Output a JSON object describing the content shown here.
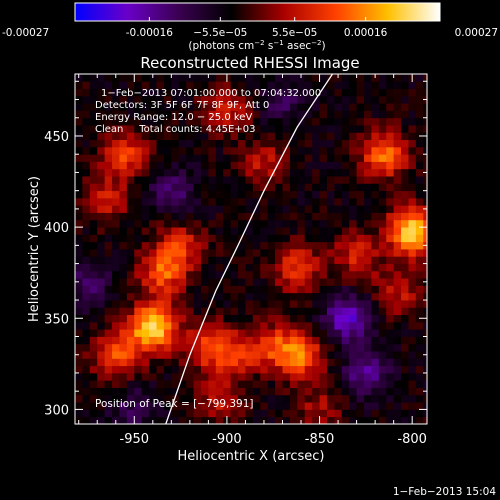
{
  "chart_data": {
    "type": "heatmap",
    "title": "Reconstructed RHESSI Image",
    "xlabel": "Heliocentric X (arcsec)",
    "ylabel": "Heliocentric Y (arcsec)",
    "x_ticks": [
      "-950",
      "-900",
      "-850",
      "-800"
    ],
    "x_tick_values": [
      -950,
      -900,
      -850,
      -800
    ],
    "y_ticks": [
      "300",
      "350",
      "400",
      "450"
    ],
    "y_tick_values": [
      300,
      350,
      400,
      450
    ],
    "xlim": [
      -982,
      -792
    ],
    "ylim": [
      292,
      484
    ],
    "colorbar": {
      "ticks": [
        "-0.00027",
        "-0.00016",
        "−5.5e−05",
        "5.5e−05",
        "0.00016",
        "0.00027"
      ],
      "tick_values": [
        -0.00027,
        -0.00016,
        -5.5e-05,
        5.5e-05,
        0.00016,
        0.00027
      ],
      "range": [
        -0.00027,
        0.00027
      ],
      "unit_label_parts": [
        "(photons cm",
        "−2",
        " s",
        "−1",
        " asec",
        "−2",
        ")"
      ],
      "colors": [
        "#0000ff",
        "#6a00c8",
        "#3a0050",
        "#000000",
        "#a80000",
        "#ff4000",
        "#ffc000",
        "#ffffff"
      ]
    },
    "info_lines": [
      "1−Feb−2013 07:01:00.000 to 07:04:32.000",
      "Detectors: 3F 5F 6F 7F 8F 9F, Att 0",
      "Energy Range: 12.0 − 25.0 keV",
      "Clean     Total counts: 4.45E+03"
    ],
    "peak_label": "Position of Peak = [−799,391]",
    "peak_position": [
      -799,
      391
    ],
    "limb_curve": [
      [
        -933,
        292
      ],
      [
        -920,
        330
      ],
      [
        -906,
        365
      ],
      [
        -894,
        390
      ],
      [
        -880,
        420
      ],
      [
        -862,
        455
      ],
      [
        -843,
        484
      ]
    ],
    "sources": [
      {
        "x": -940,
        "y": 345,
        "amp": 0.00027
      },
      {
        "x": -935,
        "y": 375,
        "amp": 0.00016
      },
      {
        "x": -925,
        "y": 390,
        "amp": 0.00012
      },
      {
        "x": -910,
        "y": 335,
        "amp": 0.00014
      },
      {
        "x": -895,
        "y": 330,
        "amp": 0.00011
      },
      {
        "x": -875,
        "y": 335,
        "amp": 0.00012
      },
      {
        "x": -860,
        "y": 330,
        "amp": 0.00017
      },
      {
        "x": -862,
        "y": 378,
        "amp": 0.00014
      },
      {
        "x": -830,
        "y": 385,
        "amp": 0.00011
      },
      {
        "x": -815,
        "y": 440,
        "amp": 0.00018
      },
      {
        "x": -800,
        "y": 398,
        "amp": 0.00027
      },
      {
        "x": -808,
        "y": 365,
        "amp": 0.0001
      },
      {
        "x": -955,
        "y": 440,
        "amp": 0.00014
      },
      {
        "x": -965,
        "y": 415,
        "amp": 0.0001
      },
      {
        "x": -960,
        "y": 330,
        "amp": 0.00015
      },
      {
        "x": -880,
        "y": 435,
        "amp": 0.0001
      },
      {
        "x": -900,
        "y": 465,
        "amp": 0.00011
      },
      {
        "x": -905,
        "y": 305,
        "amp": 9e-05
      },
      {
        "x": -850,
        "y": 300,
        "amp": 8e-05
      },
      {
        "x": -835,
        "y": 350,
        "amp": -0.00016
      },
      {
        "x": -825,
        "y": 320,
        "amp": -0.00011
      },
      {
        "x": -930,
        "y": 420,
        "amp": -9e-05
      },
      {
        "x": -975,
        "y": 370,
        "amp": -8e-05
      },
      {
        "x": -870,
        "y": 470,
        "amp": -7e-05
      },
      {
        "x": -950,
        "y": 300,
        "amp": -7e-05
      }
    ]
  },
  "footer": {
    "timestamp": "1−Feb−2013 15:04"
  }
}
